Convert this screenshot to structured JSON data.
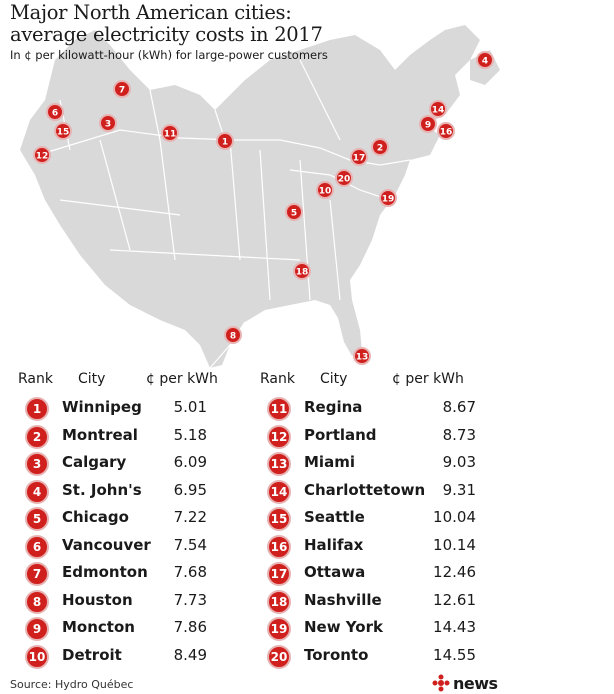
{
  "title_line1": "Major North American cities:",
  "title_line2": "average electricity costs in 2017",
  "subtitle": "In ¢ per kilowatt-hour (kWh) for large-power customers",
  "table_headers": {
    "rank": "Rank",
    "city": "City",
    "cost": "¢ per kWh"
  },
  "source": "Source: Hydro Québec",
  "logo_text": "news",
  "colors": {
    "marker": "#d0201e",
    "marker_ring": "#e7b3b3",
    "land": "#d9d9d9",
    "borders": "#ffffff"
  },
  "chart_data": {
    "type": "table",
    "title": "Major North American cities: average electricity costs in 2017",
    "subtitle": "In ¢ per kilowatt-hour (kWh) for large-power customers",
    "unit": "¢ per kWh",
    "rows": [
      {
        "rank": 1,
        "city": "Winnipeg",
        "value": "5.01"
      },
      {
        "rank": 2,
        "city": "Montreal",
        "value": "5.18"
      },
      {
        "rank": 3,
        "city": "Calgary",
        "value": "6.09"
      },
      {
        "rank": 4,
        "city": "St. John's",
        "value": "6.95"
      },
      {
        "rank": 5,
        "city": "Chicago",
        "value": "7.22"
      },
      {
        "rank": 6,
        "city": "Vancouver",
        "value": "7.54"
      },
      {
        "rank": 7,
        "city": "Edmonton",
        "value": "7.68"
      },
      {
        "rank": 8,
        "city": "Houston",
        "value": "7.73"
      },
      {
        "rank": 9,
        "city": "Moncton",
        "value": "7.86"
      },
      {
        "rank": 10,
        "city": "Detroit",
        "value": "8.49"
      },
      {
        "rank": 11,
        "city": "Regina",
        "value": "8.67"
      },
      {
        "rank": 12,
        "city": "Portland",
        "value": "8.73"
      },
      {
        "rank": 13,
        "city": "Miami",
        "value": "9.03"
      },
      {
        "rank": 14,
        "city": "Charlottetown",
        "value": "9.31"
      },
      {
        "rank": 15,
        "city": "Seattle",
        "value": "10.04"
      },
      {
        "rank": 16,
        "city": "Halifax",
        "value": "10.14"
      },
      {
        "rank": 17,
        "city": "Ottawa",
        "value": "12.46"
      },
      {
        "rank": 18,
        "city": "Nashville",
        "value": "12.61"
      },
      {
        "rank": 19,
        "city": "New York",
        "value": "14.43"
      },
      {
        "rank": 20,
        "city": "Toronto",
        "value": "14.55"
      }
    ]
  }
}
